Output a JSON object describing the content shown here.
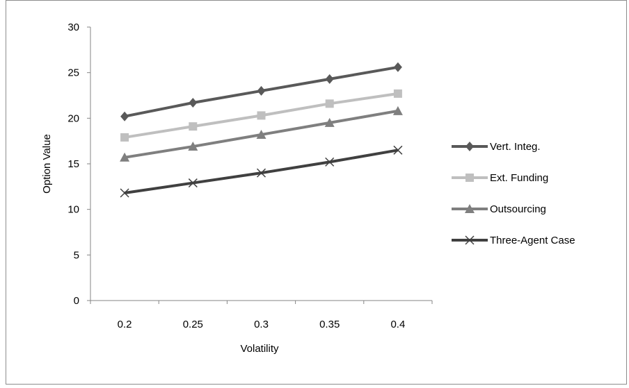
{
  "chart_data": {
    "type": "line",
    "title": "",
    "xlabel": "Volatility",
    "ylabel": "Option Value",
    "categories": [
      "0.2",
      "0.25",
      "0.3",
      "0.35",
      "0.4"
    ],
    "ylim": [
      0,
      30
    ],
    "yticks": [
      "0",
      "5",
      "10",
      "15",
      "20",
      "25",
      "30"
    ],
    "grid": false,
    "legend_position": "right",
    "series": [
      {
        "name": "Vert. Integ.",
        "values": [
          20.2,
          21.7,
          23.0,
          24.3,
          25.6
        ],
        "color": "#595959",
        "marker": "diamond"
      },
      {
        "name": "Ext. Funding",
        "values": [
          17.9,
          19.1,
          20.3,
          21.6,
          22.7
        ],
        "color": "#bfbfbf",
        "marker": "square"
      },
      {
        "name": "Outsourcing",
        "values": [
          15.7,
          16.9,
          18.2,
          19.5,
          20.8
        ],
        "color": "#7f7f7f",
        "marker": "triangle"
      },
      {
        "name": "Three-Agent Case",
        "values": [
          11.8,
          12.9,
          14.0,
          15.2,
          16.5
        ],
        "color": "#404040",
        "marker": "x"
      }
    ]
  }
}
